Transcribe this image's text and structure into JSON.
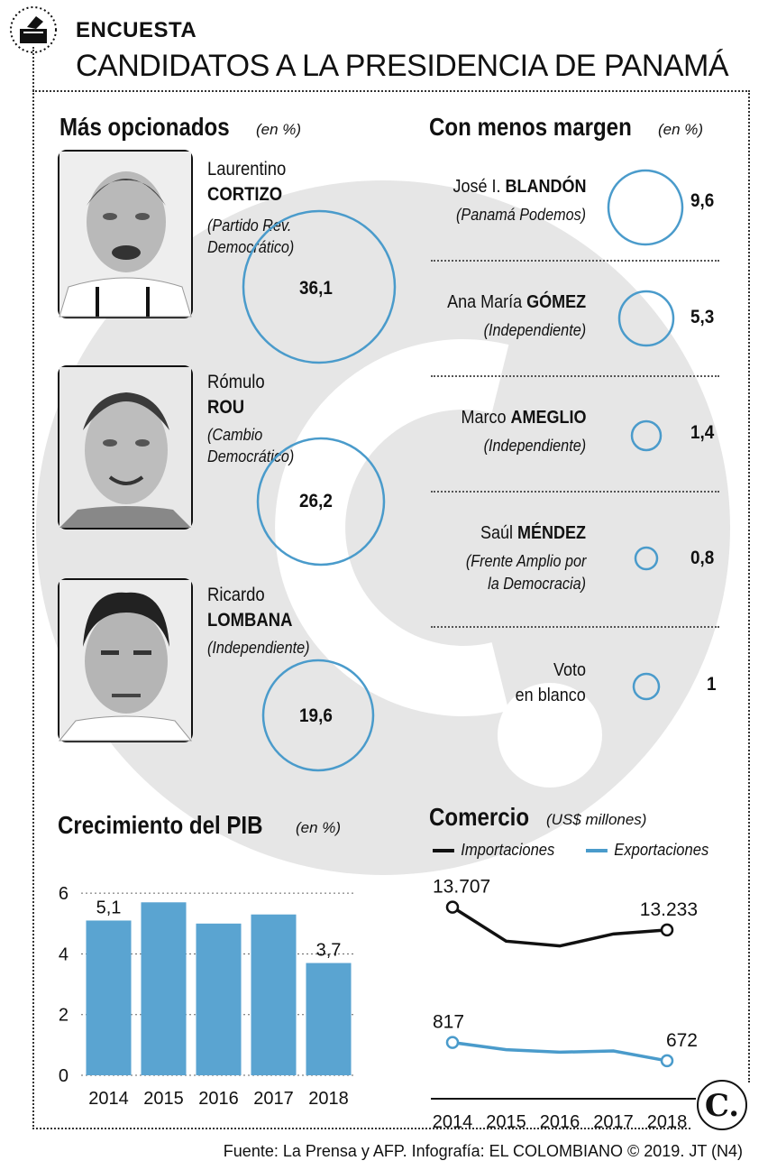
{
  "header": {
    "kicker": "ENCUESTA",
    "title": "CANDIDATOS A LA PRESIDENCIA DE PANAMÁ"
  },
  "colors": {
    "accent": "#4a9bcb",
    "bar": "#5aa4d1",
    "dark": "#111111",
    "watermark": "#e6e6e6"
  },
  "icons": {
    "header": "ballot-box-icon",
    "logo": "el-colombiano-logo"
  },
  "top_section": {
    "title": "Más opcionados",
    "unit": "(en %)",
    "candidates": [
      {
        "first": "Laurentino",
        "last": "CORTIZO",
        "party1": "(Partido Rev.",
        "party2": "Democrático)",
        "value": "36,1",
        "pct": 36.1
      },
      {
        "first": "Rómulo",
        "last": "ROU",
        "party1": "(Cambio",
        "party2": "Democrático)",
        "value": "26,2",
        "pct": 26.2
      },
      {
        "first": "Ricardo",
        "last": "LOMBANA",
        "party1": "(Independiente)",
        "party2": "",
        "value": "19,6",
        "pct": 19.6
      }
    ]
  },
  "right_section": {
    "title": "Con menos margen",
    "unit": "(en %)",
    "rows": [
      {
        "first": "José I.",
        "last": "BLANDÓN",
        "party1": "(Panamá Podemos)",
        "party2": "",
        "value": "9,6",
        "pct": 9.6
      },
      {
        "first": "Ana María",
        "last": "GÓMEZ",
        "party1": "(Independiente)",
        "party2": "",
        "value": "5,3",
        "pct": 5.3
      },
      {
        "first": "Marco",
        "last": "AMEGLIO",
        "party1": "(Independiente)",
        "party2": "",
        "value": "1,4",
        "pct": 1.4
      },
      {
        "first": "Saúl",
        "last": "MÉNDEZ",
        "party1": "(Frente Amplio por",
        "party2": "la Democracia)",
        "value": "0,8",
        "pct": 0.8
      },
      {
        "first": "Voto",
        "last": "",
        "party1": "",
        "party2": "",
        "line2": "en blanco",
        "value": "1",
        "pct": 1
      }
    ]
  },
  "pib": {
    "title": "Crecimiento del PIB",
    "unit": "(en %)"
  },
  "comercio": {
    "title": "Comercio",
    "unit": "(US$ millones)",
    "legend_import": "Importaciones",
    "legend_export": "Exportaciones"
  },
  "chart_data": [
    {
      "type": "bar",
      "title": "Crecimiento del PIB",
      "unit": "(en %)",
      "categories": [
        "2014",
        "2015",
        "2016",
        "2017",
        "2018"
      ],
      "values": [
        5.1,
        5.7,
        5.0,
        5.3,
        3.7
      ],
      "data_labels": [
        "5,1",
        "",
        "",
        "",
        "3,7"
      ],
      "yticks": [
        "0",
        "2",
        "4",
        "6"
      ],
      "ylim": [
        0,
        6.6
      ],
      "grid": true
    },
    {
      "type": "line",
      "title": "Comercio",
      "unit": "(US$ millones)",
      "x": [
        "2014",
        "2015",
        "2016",
        "2017",
        "2018"
      ],
      "series": [
        {
          "name": "Importaciones",
          "values": [
            13707,
            13000,
            12900,
            13150,
            13233
          ],
          "labels": [
            "13.707",
            "",
            "",
            "",
            "13.233"
          ]
        },
        {
          "name": "Exportaciones",
          "values": [
            817,
            760,
            740,
            750,
            672
          ],
          "labels": [
            "817",
            "",
            "",
            "",
            "672"
          ]
        }
      ],
      "legend": "top"
    }
  ],
  "footer": "Fuente: La Prensa y AFP. Infografía: EL COLOMBIANO © 2019. JT (N4)"
}
